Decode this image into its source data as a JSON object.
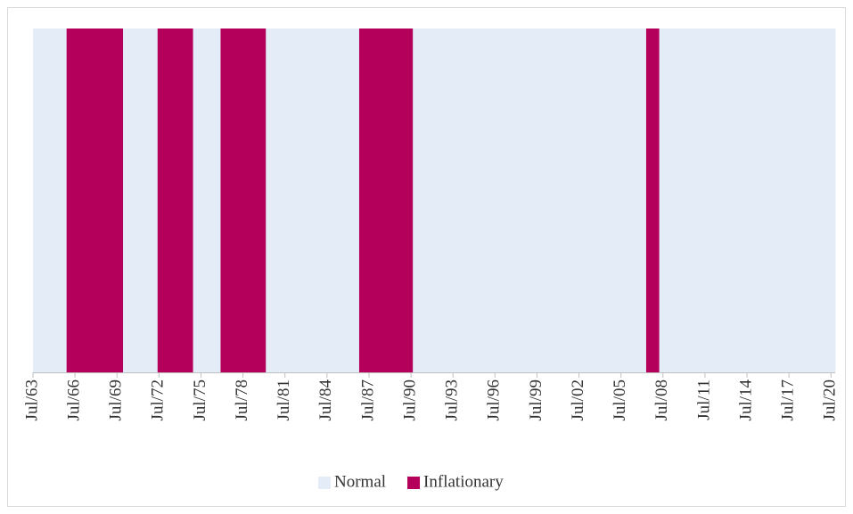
{
  "chart_data": {
    "type": "regime",
    "series": [
      {
        "name": "Normal",
        "color": "#e4ecf7",
        "intervals": [
          [
            1963.5,
            1965.9
          ],
          [
            1969.9,
            1972.4
          ],
          [
            1974.9,
            1976.9
          ],
          [
            1980.1,
            1986.8
          ],
          [
            1990.6,
            2007.3
          ],
          [
            2008.2,
            2020.8
          ]
        ]
      },
      {
        "name": "Inflationary",
        "color": "#b5005b",
        "intervals": [
          [
            1965.9,
            1969.9
          ],
          [
            1972.4,
            1974.9
          ],
          [
            1976.9,
            1980.1
          ],
          [
            1986.8,
            1990.6
          ],
          [
            2007.3,
            2008.2
          ]
        ]
      }
    ],
    "xlim": [
      1963.5,
      2020.8
    ],
    "xticks": [
      {
        "value": 1963.5,
        "label": "Jul/63"
      },
      {
        "value": 1966.5,
        "label": "Jul/66"
      },
      {
        "value": 1969.5,
        "label": "Jul/69"
      },
      {
        "value": 1972.5,
        "label": "Jul/72"
      },
      {
        "value": 1975.5,
        "label": "Jul/75"
      },
      {
        "value": 1978.5,
        "label": "Jul/78"
      },
      {
        "value": 1981.5,
        "label": "Jul/81"
      },
      {
        "value": 1984.5,
        "label": "Jul/84"
      },
      {
        "value": 1987.5,
        "label": "Jul/87"
      },
      {
        "value": 1990.5,
        "label": "Jul/90"
      },
      {
        "value": 1993.5,
        "label": "Jul/93"
      },
      {
        "value": 1996.5,
        "label": "Jul/96"
      },
      {
        "value": 1999.5,
        "label": "Jul/99"
      },
      {
        "value": 2002.5,
        "label": "Jul/02"
      },
      {
        "value": 2005.5,
        "label": "Jul/05"
      },
      {
        "value": 2008.5,
        "label": "Jul/08"
      },
      {
        "value": 2011.5,
        "label": "Jul/11"
      },
      {
        "value": 2014.5,
        "label": "Jul/14"
      },
      {
        "value": 2017.5,
        "label": "Jul/17"
      },
      {
        "value": 2020.5,
        "label": "Jul/20"
      }
    ],
    "legend": "bottom"
  }
}
